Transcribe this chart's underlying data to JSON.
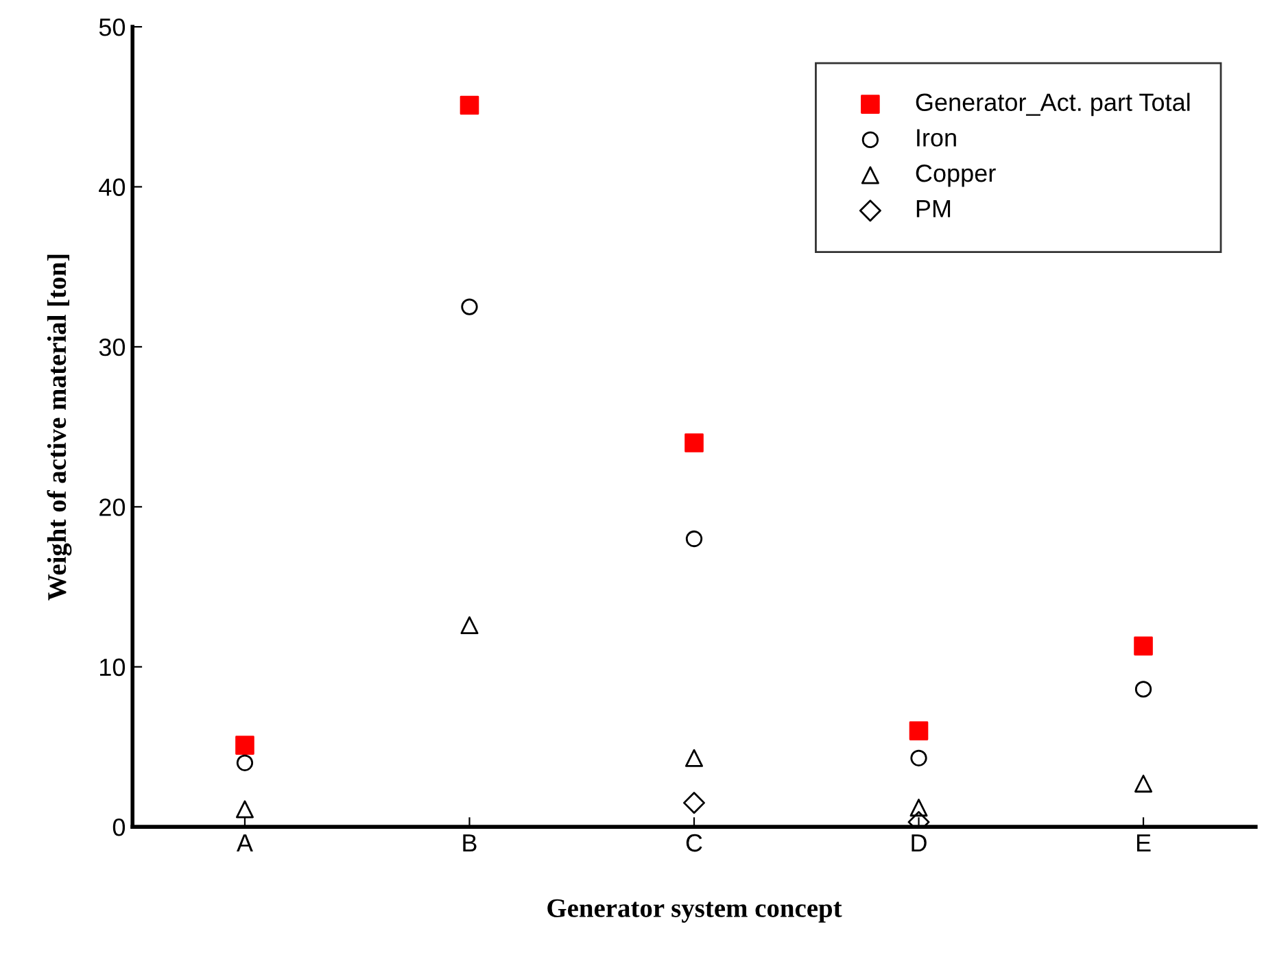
{
  "chart_data": {
    "type": "scatter",
    "xlabel": "Generator system concept",
    "ylabel": "Weight of active material [ton]",
    "categories": [
      "A",
      "B",
      "C",
      "D",
      "E"
    ],
    "series": [
      {
        "name": "Generator_Act. part Total",
        "color": "#ff0000",
        "marker": "square",
        "values": [
          5.1,
          45.1,
          24.0,
          6.0,
          11.3
        ]
      },
      {
        "name": "Iron",
        "color": "#000000",
        "marker": "circle",
        "values": [
          4.0,
          32.5,
          18.0,
          4.3,
          8.6
        ]
      },
      {
        "name": "Copper",
        "color": "#000000",
        "marker": "triangle",
        "values": [
          1.1,
          12.6,
          4.3,
          1.2,
          2.7
        ]
      },
      {
        "name": "PM",
        "color": "#000000",
        "marker": "diamond",
        "values": [
          null,
          null,
          1.5,
          0.3,
          null
        ]
      }
    ],
    "ylim": [
      0,
      50
    ],
    "yticks": [
      0,
      10,
      20,
      30,
      40,
      50
    ],
    "grid": false,
    "legend": "top right"
  }
}
